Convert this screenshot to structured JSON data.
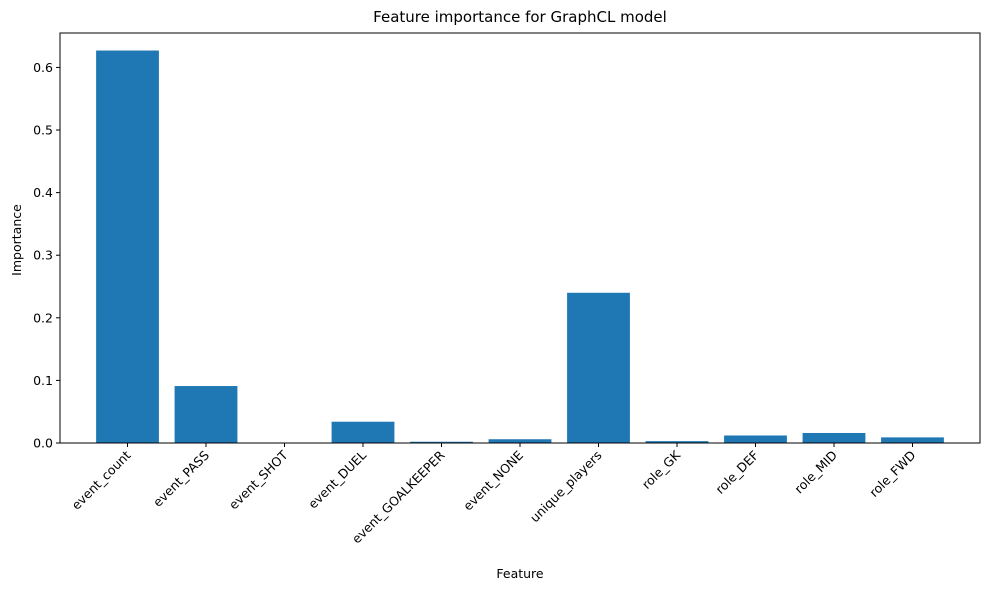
{
  "chart_data": {
    "type": "bar",
    "title": "Feature importance for GraphCL model",
    "xlabel": "Feature",
    "ylabel": "Importance",
    "categories": [
      "event_count",
      "event_PASS",
      "event_SHOT",
      "event_DUEL",
      "event_GOALKEEPER",
      "event_NONE",
      "unique_players",
      "role_GK",
      "role_DEF",
      "role_MID",
      "role_FWD"
    ],
    "values": [
      0.627,
      0.091,
      0.0,
      0.034,
      0.002,
      0.006,
      0.24,
      0.003,
      0.012,
      0.016,
      0.009
    ],
    "ylim": [
      0,
      0.655
    ],
    "yticks": [
      0.0,
      0.1,
      0.2,
      0.3,
      0.4,
      0.5,
      0.6
    ],
    "ytick_labels": [
      "0.0",
      "0.1",
      "0.2",
      "0.3",
      "0.4",
      "0.5",
      "0.6"
    ],
    "grid": false,
    "legend": "none",
    "bar_color": "#1f77b4"
  }
}
